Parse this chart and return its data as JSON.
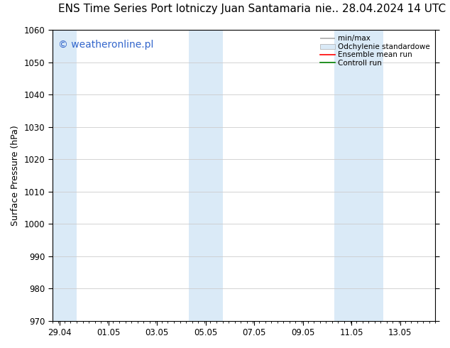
{
  "title_left": "ENS Time Series Port lotniczy Juan Santamaria",
  "title_right": "nie.. 28.04.2024 14 UTC",
  "ylabel": "Surface Pressure (hPa)",
  "ylim": [
    970,
    1060
  ],
  "yticks": [
    970,
    980,
    990,
    1000,
    1010,
    1020,
    1030,
    1040,
    1050,
    1060
  ],
  "xtick_labels": [
    "29.04",
    "01.05",
    "03.05",
    "05.05",
    "07.05",
    "09.05",
    "11.05",
    "13.05"
  ],
  "xtick_positions": [
    0,
    2,
    4,
    6,
    8,
    10,
    12,
    14
  ],
  "xmin": -0.3,
  "xmax": 15.3,
  "shaded_bands": [
    {
      "x_start": -0.3,
      "x_end": 0.7,
      "color": "#daeaf7"
    },
    {
      "x_start": 5.3,
      "x_end": 6.7,
      "color": "#daeaf7"
    },
    {
      "x_start": 11.3,
      "x_end": 13.3,
      "color": "#daeaf7"
    }
  ],
  "watermark_text": "© weatheronline.pl",
  "watermark_color": "#3366cc",
  "watermark_fontsize": 10,
  "legend_items": [
    {
      "label": "min/max",
      "color": "#aaaaaa",
      "style": "minmax"
    },
    {
      "label": "Odchylenie standardowe",
      "color": "#daeaf7",
      "style": "std"
    },
    {
      "label": "Ensemble mean run",
      "color": "red",
      "style": "line"
    },
    {
      "label": "Controll run",
      "color": "green",
      "style": "line"
    }
  ],
  "bg_color": "#ffffff",
  "grid_color": "#cccccc",
  "title_fontsize": 11,
  "tick_fontsize": 8.5,
  "ylabel_fontsize": 9
}
